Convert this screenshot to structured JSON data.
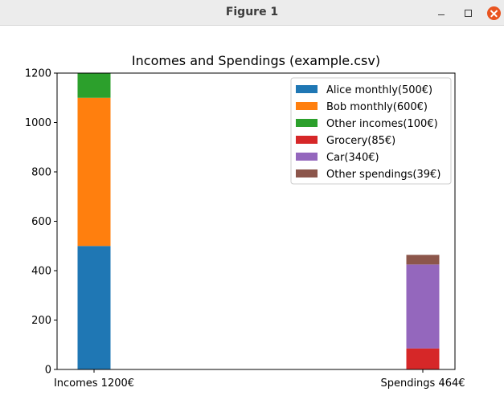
{
  "window": {
    "title": "Figure 1",
    "minimize_icon": "minimize-icon",
    "maximize_icon": "maximize-icon",
    "close_icon": "close-icon",
    "close_color": "#e95420"
  },
  "chart_data": {
    "type": "bar",
    "stacked": true,
    "title": "Incomes and Spendings (example.csv)",
    "xlabel": "",
    "ylabel": "",
    "categories": [
      "Incomes 1200€",
      "Spendings 464€"
    ],
    "ylim": [
      0,
      1200
    ],
    "yticks": [
      0,
      200,
      400,
      600,
      800,
      1000,
      1200
    ],
    "grid": false,
    "legend_position": "top-right",
    "series": [
      {
        "name": "Alice monthly(500€)",
        "values": [
          500,
          0
        ],
        "color": "#1f77b4"
      },
      {
        "name": "Bob monthly(600€)",
        "values": [
          600,
          0
        ],
        "color": "#ff7f0e"
      },
      {
        "name": "Other incomes(100€)",
        "values": [
          100,
          0
        ],
        "color": "#2ca02c"
      },
      {
        "name": "Grocery(85€)",
        "values": [
          0,
          85
        ],
        "color": "#d62728"
      },
      {
        "name": "Car(340€)",
        "values": [
          0,
          340
        ],
        "color": "#9467bd"
      },
      {
        "name": "Other spendings(39€)",
        "values": [
          0,
          39
        ],
        "color": "#8c564b"
      }
    ]
  }
}
